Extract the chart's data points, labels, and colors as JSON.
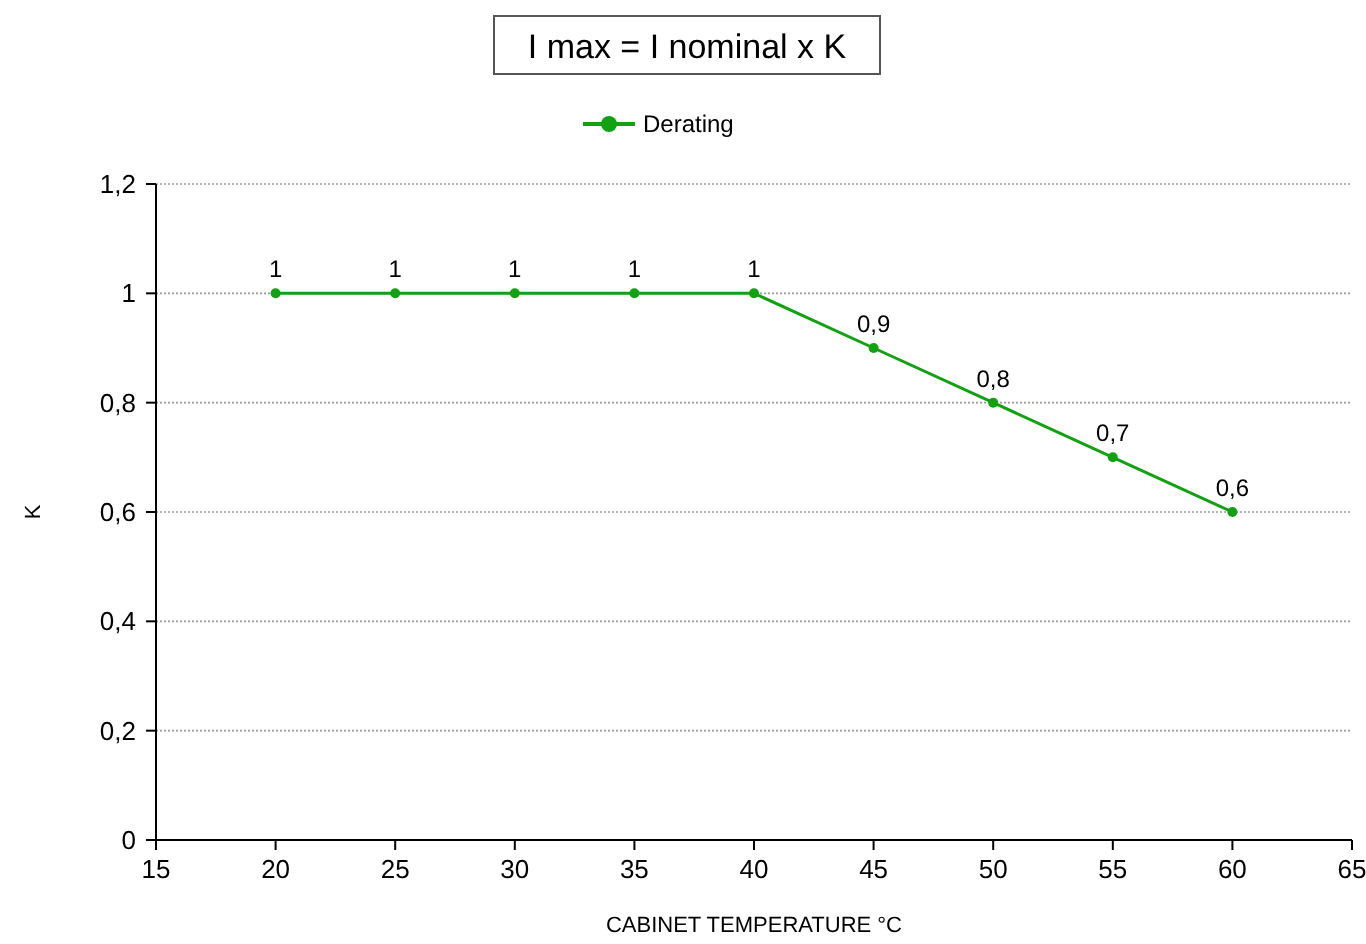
{
  "chart_data": {
    "type": "line",
    "title": "I max = I nominal x K",
    "xlabel": "CABINET TEMPERATURE °C",
    "ylabel": "K",
    "x": [
      20,
      25,
      30,
      35,
      40,
      45,
      50,
      55,
      60
    ],
    "series": [
      {
        "name": "Derating",
        "color": "#13a013",
        "values": [
          1,
          1,
          1,
          1,
          1,
          0.9,
          0.8,
          0.7,
          0.6
        ],
        "value_labels": [
          "1",
          "1",
          "1",
          "1",
          "1",
          "0,9",
          "0,8",
          "0,7",
          "0,6"
        ]
      }
    ],
    "xlim": [
      15,
      65
    ],
    "xticks": [
      15,
      20,
      25,
      30,
      35,
      40,
      45,
      50,
      55,
      60,
      65
    ],
    "ylim": [
      0,
      1.2
    ],
    "yticks": [
      0,
      {
        "value": 0.2,
        "label": "0,2"
      },
      {
        "value": 0.4,
        "label": "0,4"
      },
      {
        "value": 0.6,
        "label": "0,6"
      },
      {
        "value": 0.8,
        "label": "0,8"
      },
      1,
      {
        "value": 1.2,
        "label": "1,2"
      }
    ],
    "grid": "y",
    "legend": "top",
    "marker": "circle",
    "line_style": "solid"
  }
}
